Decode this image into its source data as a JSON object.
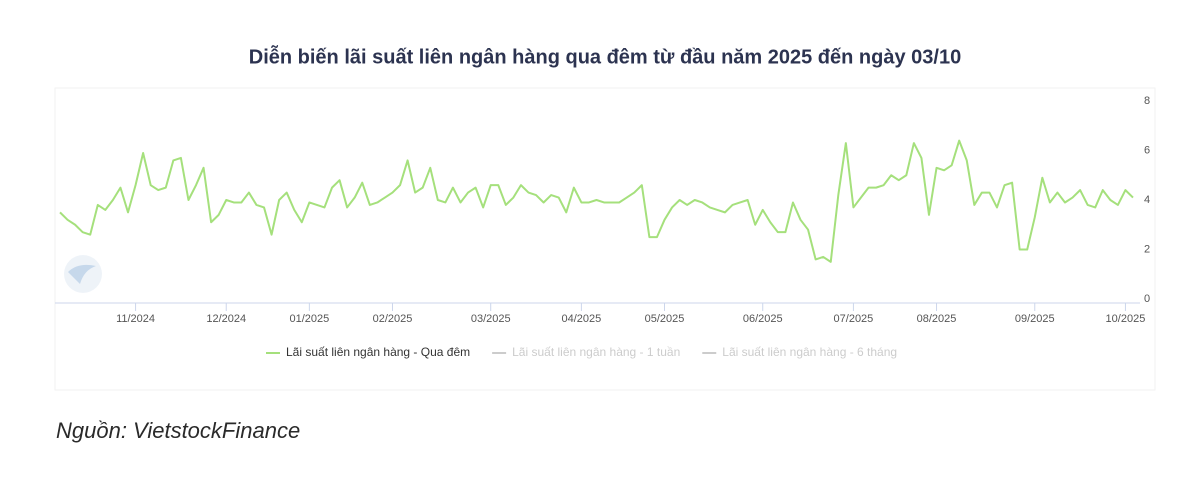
{
  "chart_data": {
    "type": "line",
    "title": "Diễn biến lãi suất liên ngân hàng qua đêm từ đầu năm 2025 đến ngày 03/10",
    "source": "Nguồn: VietstockFinance",
    "categories": [
      null,
      null,
      null,
      null,
      null,
      null,
      null,
      null,
      null,
      null,
      "11/2024",
      null,
      null,
      null,
      null,
      null,
      null,
      null,
      null,
      null,
      null,
      null,
      "12/2024",
      null,
      null,
      null,
      null,
      null,
      null,
      null,
      null,
      null,
      null,
      "01/2025",
      null,
      null,
      null,
      null,
      null,
      null,
      null,
      null,
      null,
      null,
      "02/2025",
      null,
      null,
      null,
      null,
      null,
      null,
      null,
      null,
      null,
      null,
      null,
      null,
      "03/2025",
      null,
      null,
      null,
      null,
      null,
      null,
      null,
      null,
      null,
      null,
      null,
      "04/2025",
      null,
      null,
      null,
      null,
      null,
      null,
      null,
      null,
      null,
      null,
      "05/2025",
      null,
      null,
      null,
      null,
      null,
      null,
      null,
      null,
      null,
      null,
      null,
      null,
      "06/2025",
      null,
      null,
      null,
      null,
      null,
      null,
      null,
      null,
      null,
      null,
      null,
      "07/2025",
      null,
      null,
      null,
      null,
      null,
      null,
      null,
      null,
      null,
      null,
      "08/2025",
      null,
      null,
      null,
      null,
      null,
      null,
      null,
      null,
      null,
      null,
      null,
      null,
      "09/2025",
      null,
      null,
      null,
      null,
      null,
      null,
      null,
      null,
      null,
      null,
      null,
      "10/2025",
      null
    ],
    "series": [
      {
        "name": "Lãi suất liên ngân hàng - Qua đêm",
        "color": "#a5e07c",
        "values": [
          3.5,
          3.2,
          3.0,
          2.7,
          2.6,
          3.8,
          3.6,
          4.0,
          4.5,
          3.5,
          4.6,
          5.9,
          4.6,
          4.4,
          4.5,
          5.6,
          5.7,
          4.0,
          4.6,
          5.3,
          3.1,
          3.4,
          4.0,
          3.9,
          3.9,
          4.3,
          3.8,
          3.7,
          2.6,
          4.0,
          4.3,
          3.6,
          3.1,
          3.9,
          3.8,
          3.7,
          4.5,
          4.8,
          3.7,
          4.1,
          4.7,
          3.8,
          3.9,
          4.1,
          4.3,
          4.6,
          5.6,
          4.3,
          4.5,
          5.3,
          4.0,
          3.9,
          4.5,
          3.9,
          4.3,
          4.5,
          3.7,
          4.6,
          4.6,
          3.8,
          4.1,
          4.6,
          4.3,
          4.2,
          3.9,
          4.2,
          4.1,
          3.5,
          4.5,
          3.9,
          3.9,
          4.0,
          3.9,
          3.9,
          3.9,
          4.1,
          4.3,
          4.6,
          2.5,
          2.5,
          3.2,
          3.7,
          4.0,
          3.8,
          4.0,
          3.9,
          3.7,
          3.6,
          3.5,
          3.8,
          3.9,
          4.0,
          3.0,
          3.6,
          3.1,
          2.7,
          2.7,
          3.9,
          3.2,
          2.8,
          1.6,
          1.7,
          1.5,
          4.2,
          6.3,
          3.7,
          4.1,
          4.5,
          4.5,
          4.6,
          5.0,
          4.8,
          5.0,
          6.3,
          5.7,
          3.4,
          5.3,
          5.2,
          5.4,
          6.4,
          5.6,
          3.8,
          4.3,
          4.3,
          3.7,
          4.6,
          4.7,
          2.0,
          2.0,
          3.3,
          4.9,
          3.9,
          4.3,
          3.9,
          4.1,
          4.4,
          3.8,
          3.7,
          4.4,
          4.0,
          3.8,
          4.4,
          4.1
        ]
      }
    ],
    "hidden_series": [
      {
        "name": "Lãi suất liên ngân hàng - 1 tuần",
        "color": "#cccccc"
      },
      {
        "name": "Lãi suất liên ngân hàng - 6 tháng",
        "color": "#cccccc"
      }
    ],
    "ylim": [
      0,
      8
    ],
    "yticks": [
      0,
      2,
      4,
      6,
      8
    ],
    "y_axis_side": "right",
    "grid": false
  }
}
